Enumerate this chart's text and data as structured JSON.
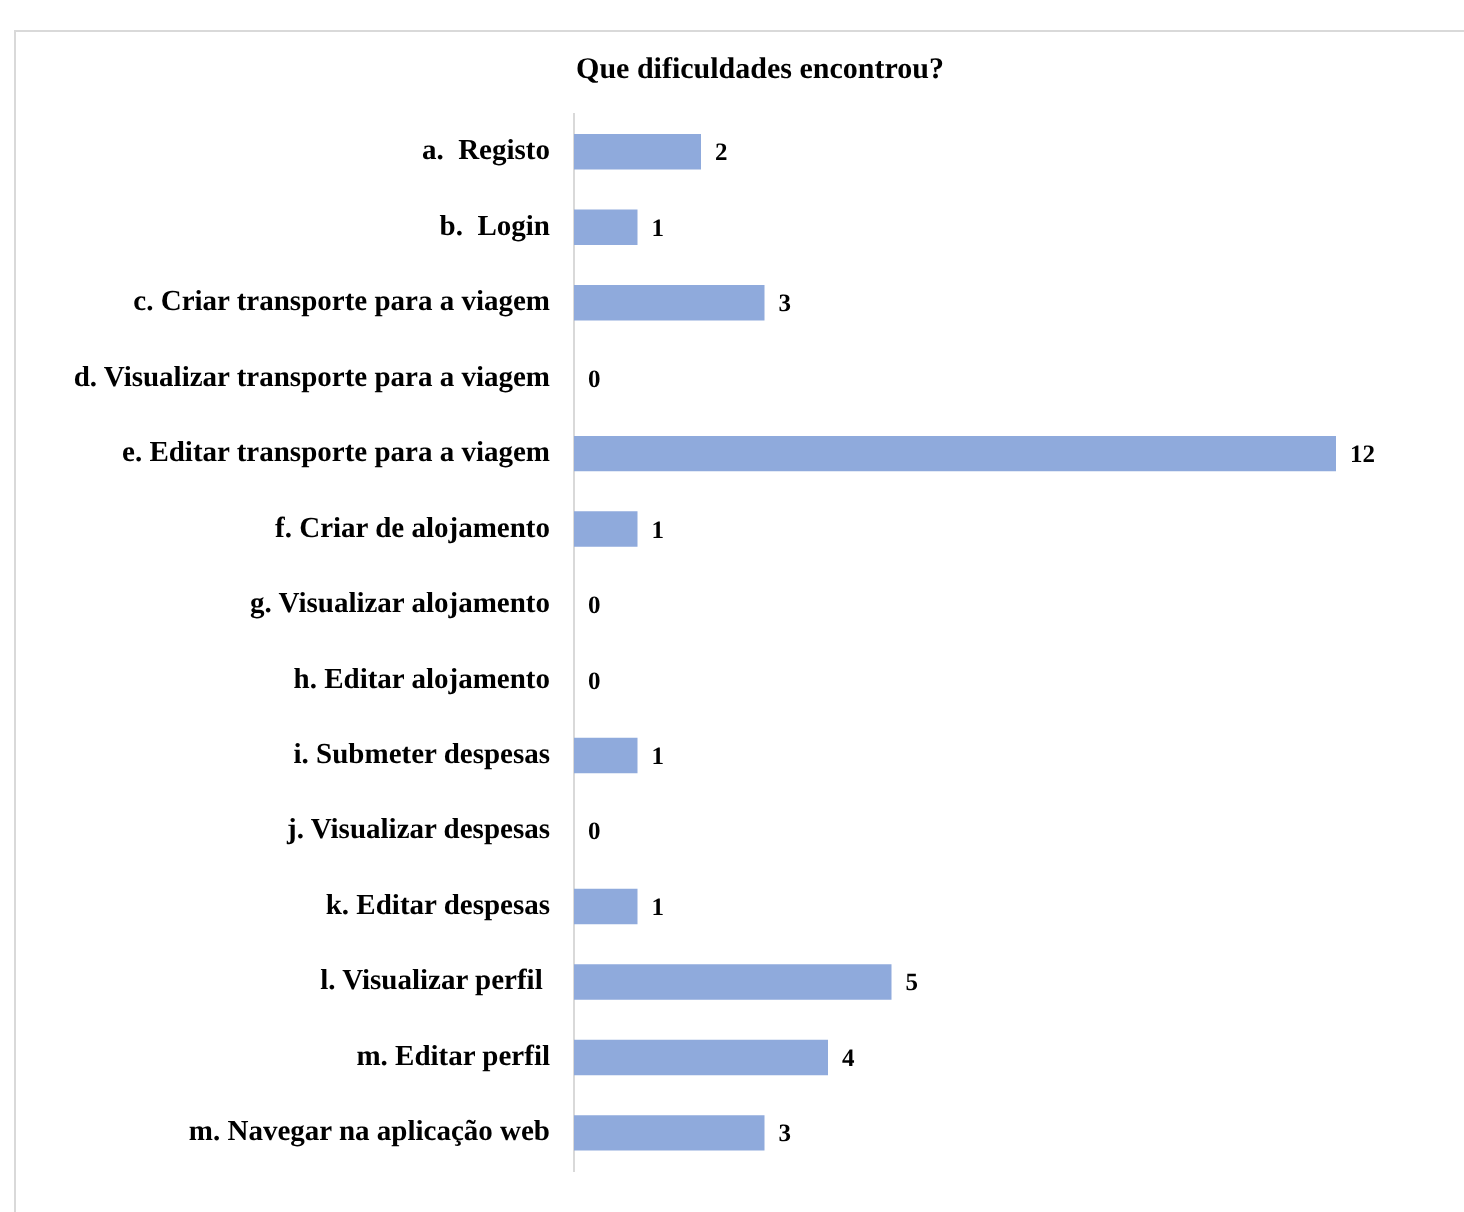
{
  "chart_data": {
    "type": "bar",
    "orientation": "horizontal",
    "title": "Que dificuldades encontrou?",
    "categories": [
      "a.  Registo",
      "b.  Login",
      "c. Criar transporte para a viagem",
      "d. Visualizar transporte para a viagem",
      "e. Editar transporte para a viagem",
      "f. Criar de alojamento",
      "g. Visualizar alojamento",
      "h. Editar alojamento",
      "i. Submeter despesas",
      "j. Visualizar despesas",
      "k. Editar despesas",
      "l. Visualizar perfil ",
      "m. Editar perfil",
      "m. Navegar na aplicação web"
    ],
    "values": [
      2,
      1,
      3,
      0,
      12,
      1,
      0,
      0,
      1,
      0,
      1,
      5,
      4,
      3
    ],
    "color": "#8faadc",
    "data_labels": true,
    "tick_labels": "y"
  }
}
